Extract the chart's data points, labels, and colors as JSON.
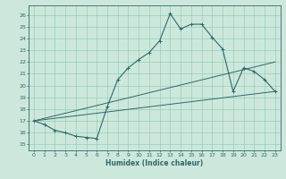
{
  "xlabel": "Humidex (Indice chaleur)",
  "bg_color": "#cce8dc",
  "grid_color": "#99ccb8",
  "line_color": "#336666",
  "xlim": [
    -0.5,
    23.5
  ],
  "ylim": [
    14.5,
    26.8
  ],
  "yticks": [
    15,
    16,
    17,
    18,
    19,
    20,
    21,
    22,
    23,
    24,
    25,
    26
  ],
  "xticks": [
    0,
    1,
    2,
    3,
    4,
    5,
    6,
    7,
    8,
    9,
    10,
    11,
    12,
    13,
    14,
    15,
    16,
    17,
    18,
    19,
    20,
    21,
    22,
    23
  ],
  "main_line": {
    "x": [
      0,
      1,
      2,
      3,
      4,
      5,
      6,
      7,
      8,
      9,
      10,
      11,
      12,
      13,
      14,
      15,
      16,
      17,
      18,
      19,
      20,
      21,
      22,
      23
    ],
    "y": [
      17.0,
      16.7,
      16.2,
      16.0,
      15.7,
      15.6,
      15.5,
      18.2,
      20.5,
      21.5,
      22.2,
      22.8,
      23.8,
      26.1,
      24.8,
      25.2,
      25.2,
      24.1,
      23.1,
      19.5,
      21.5,
      21.2,
      20.5,
      19.5
    ]
  },
  "line2": {
    "x": [
      0,
      23
    ],
    "y": [
      17.0,
      19.5
    ]
  },
  "line3": {
    "x": [
      0,
      23
    ],
    "y": [
      17.0,
      22.0
    ]
  }
}
